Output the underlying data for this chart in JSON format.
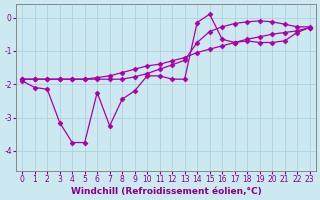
{
  "xlabel": "Windchill (Refroidissement éolien,°C)",
  "background_color": "#cce8f0",
  "grid_color": "#aaccd8",
  "line_color": "#aa00aa",
  "x_ticks": [
    0,
    1,
    2,
    3,
    4,
    5,
    6,
    7,
    8,
    9,
    10,
    11,
    12,
    13,
    14,
    15,
    16,
    17,
    18,
    19,
    20,
    21,
    22,
    23
  ],
  "xlim": [
    -0.5,
    23.5
  ],
  "ylim": [
    -4.6,
    0.4
  ],
  "y_ticks": [
    0,
    -1,
    -2,
    -3,
    -4
  ],
  "series1_x": [
    0,
    1,
    2,
    3,
    4,
    5,
    6,
    7,
    8,
    9,
    10,
    11,
    12,
    13,
    14,
    15,
    16,
    17,
    18,
    19,
    20,
    21,
    22,
    23
  ],
  "series1_y": [
    -1.9,
    -2.1,
    -2.15,
    -3.15,
    -3.75,
    -3.75,
    -2.25,
    -3.25,
    -2.45,
    -2.2,
    -1.75,
    -1.75,
    -1.85,
    -1.85,
    -0.15,
    0.1,
    -0.65,
    -0.75,
    -0.7,
    -0.75,
    -0.75,
    -0.7,
    -0.45,
    -0.3
  ],
  "series2_x": [
    0,
    1,
    2,
    3,
    4,
    5,
    6,
    7,
    8,
    9,
    10,
    11,
    12,
    13,
    14,
    15,
    16,
    17,
    18,
    19,
    20,
    21,
    22,
    23
  ],
  "series2_y": [
    -1.85,
    -1.85,
    -1.85,
    -1.85,
    -1.85,
    -1.85,
    -1.8,
    -1.75,
    -1.65,
    -1.55,
    -1.45,
    -1.4,
    -1.3,
    -1.2,
    -1.05,
    -0.95,
    -0.85,
    -0.75,
    -0.65,
    -0.58,
    -0.5,
    -0.45,
    -0.4,
    -0.3
  ],
  "series3_x": [
    0,
    1,
    2,
    3,
    4,
    5,
    6,
    7,
    8,
    9,
    10,
    11,
    12,
    13,
    14,
    15,
    16,
    17,
    18,
    19,
    20,
    21,
    22,
    23
  ],
  "series3_y": [
    -1.85,
    -1.85,
    -1.85,
    -1.85,
    -1.85,
    -1.85,
    -1.85,
    -1.85,
    -1.85,
    -1.78,
    -1.68,
    -1.55,
    -1.42,
    -1.28,
    -0.75,
    -0.42,
    -0.28,
    -0.18,
    -0.13,
    -0.1,
    -0.13,
    -0.2,
    -0.28,
    -0.28
  ],
  "marker": "D",
  "markersize": 2.5,
  "linewidth": 0.9,
  "tick_fontsize": 5.5,
  "xlabel_fontsize": 6.5
}
